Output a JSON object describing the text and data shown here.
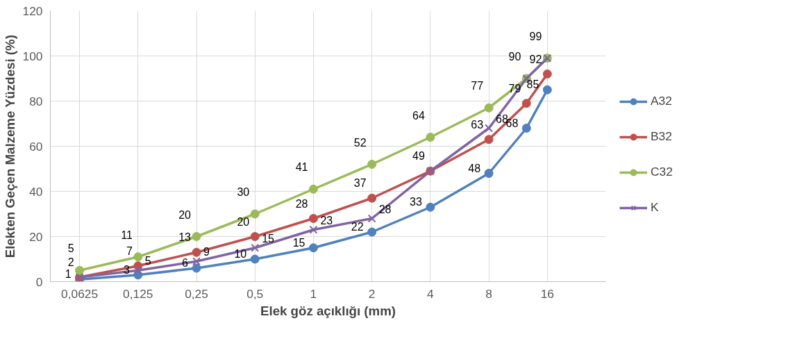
{
  "chart_data": {
    "type": "line",
    "xlabel": "Elek göz açıklığı (mm)",
    "ylabel": "Elekten Geçen Malzeme Yüzdesi (%)",
    "log": "x",
    "xlim": [
      0.0442,
      32
    ],
    "ylim": [
      0,
      120
    ],
    "xticks": [
      {
        "value": 0.0625,
        "label": "0,0625"
      },
      {
        "value": 0.125,
        "label": "0,125"
      },
      {
        "value": 0.25,
        "label": "0,25"
      },
      {
        "value": 0.5,
        "label": "0,5"
      },
      1,
      2,
      4,
      8,
      16
    ],
    "yticks": [
      0,
      20,
      40,
      60,
      80,
      100,
      120
    ],
    "x": [
      0.0625,
      0.125,
      0.25,
      0.5,
      1,
      2,
      4,
      8,
      12.5,
      16
    ],
    "grid": true,
    "legend": "right",
    "data_labels": true,
    "line_style": "solid",
    "series": [
      {
        "name": "A32",
        "color": "#4f81bd",
        "marker": "circle",
        "values": [
          1,
          3,
          6,
          10,
          15,
          22,
          33,
          48,
          68,
          85
        ]
      },
      {
        "name": "B32",
        "color": "#c0504d",
        "marker": "circle",
        "values": [
          2,
          7,
          13,
          20,
          28,
          37,
          49,
          63,
          79,
          92
        ]
      },
      {
        "name": "C32",
        "color": "#9bbb59",
        "marker": "circle",
        "values": [
          5,
          11,
          20,
          30,
          41,
          52,
          64,
          77,
          90,
          99
        ]
      },
      {
        "name": "K",
        "color": "#8064a2",
        "marker": "cross",
        "values": [
          2,
          5,
          9,
          15,
          23,
          28,
          49,
          68,
          90,
          99
        ],
        "value_labels": [
          null,
          "5",
          "9",
          "15",
          "23",
          "28",
          null,
          "68",
          null,
          null
        ]
      }
    ]
  }
}
